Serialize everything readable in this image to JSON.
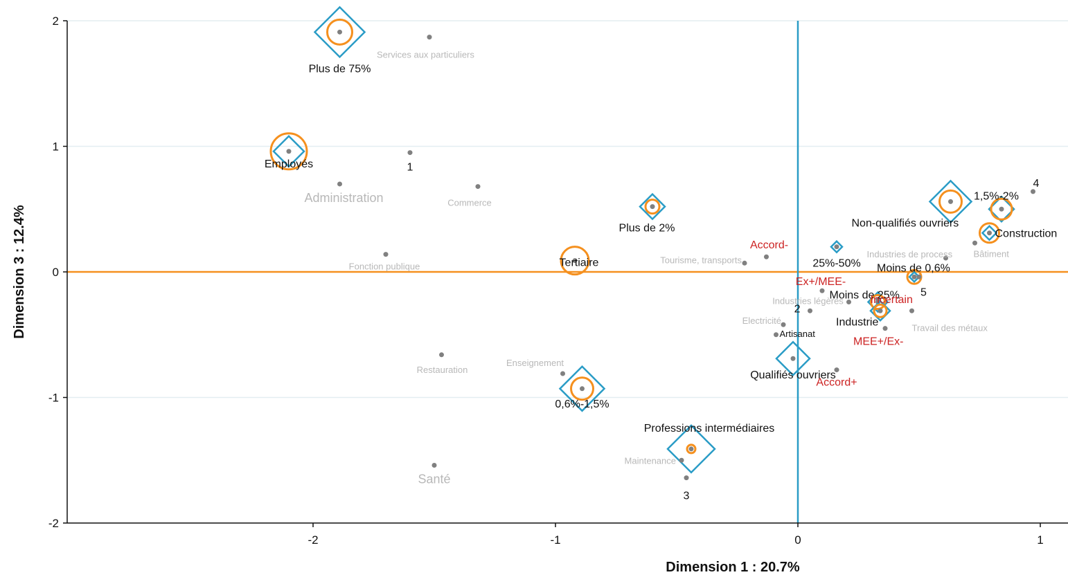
{
  "chart_data": {
    "type": "scatter",
    "xlabel": "Dimension 1 : 20.7%",
    "ylabel": "Dimension 3 : 12.4%",
    "xlim": [
      -2.9,
      1.11
    ],
    "ylim": [
      -2,
      2
    ],
    "xticks": [
      "-2",
      "-1",
      "0",
      "1"
    ],
    "yticks": [
      "2",
      "1",
      "0",
      "-1",
      "-2"
    ],
    "grid": "horizontal",
    "colors": {
      "active": "#111111",
      "supplementary": "#b8b8b8",
      "illustrative": "#cc2222",
      "diamond": "#2a9cc6",
      "circle": "#f5901e",
      "point": "#808080"
    },
    "reference_lines": [
      {
        "orientation": "horizontal",
        "value": 0,
        "color": "#f5901e"
      },
      {
        "orientation": "vertical",
        "value": 0,
        "color": "#2a9cc6"
      }
    ],
    "points": [
      {
        "label": "Plus de 75%",
        "x": -1.89,
        "y": 1.91,
        "group": "active",
        "circle": 18,
        "diamond": 36
      },
      {
        "label": "Services aux particuliers",
        "x": -1.52,
        "y": 1.87,
        "group": "supplementary"
      },
      {
        "label": "Employés",
        "x": -2.1,
        "y": 0.96,
        "group": "active",
        "circle": 26,
        "diamond": 22
      },
      {
        "label": "1",
        "x": -1.6,
        "y": 0.95,
        "group": "active"
      },
      {
        "label": "Administration",
        "x": -1.89,
        "y": 0.7,
        "group": "supplementary"
      },
      {
        "label": "Commerce",
        "x": -1.32,
        "y": 0.68,
        "group": "supplementary"
      },
      {
        "label": "Plus de 2%",
        "x": -0.6,
        "y": 0.52,
        "group": "active",
        "circle": 10,
        "diamond": 18
      },
      {
        "label": "Fonction publique",
        "x": -1.7,
        "y": 0.14,
        "group": "supplementary"
      },
      {
        "label": "Tertiaire",
        "x": -0.92,
        "y": 0.09,
        "group": "active",
        "circle": 20
      },
      {
        "label": "Accord-",
        "x": -0.13,
        "y": 0.12,
        "group": "illustrative"
      },
      {
        "label": "Tourisme, transports",
        "x": -0.22,
        "y": 0.07,
        "group": "supplementary"
      },
      {
        "label": "25%-50%",
        "x": 0.16,
        "y": 0.2,
        "group": "active",
        "diamond": 8
      },
      {
        "label": "Industries de process",
        "x": 0.61,
        "y": 0.11,
        "group": "supplementary"
      },
      {
        "label": "Non-qualifiés ouvriers",
        "x": 0.63,
        "y": 0.56,
        "group": "active",
        "circle": 16,
        "diamond": 30
      },
      {
        "label": "1,5%-2%",
        "x": 0.84,
        "y": 0.5,
        "group": "active",
        "circle": 15,
        "diamond": 18
      },
      {
        "label": "4",
        "x": 0.97,
        "y": 0.64,
        "group": "active"
      },
      {
        "label": "Construction",
        "x": 0.79,
        "y": 0.31,
        "group": "active",
        "circle": 14,
        "diamond": 10
      },
      {
        "label": "Bâtiment",
        "x": 0.73,
        "y": 0.23,
        "group": "supplementary"
      },
      {
        "label": "Moins de 0,6%",
        "x": 0.48,
        "y": -0.04,
        "group": "active",
        "circle": 10,
        "diamond": 7
      },
      {
        "label": "5",
        "x": 0.5,
        "y": -0.04,
        "group": "active"
      },
      {
        "label": "Ex+/MEE-",
        "x": 0.1,
        "y": -0.15,
        "group": "illustrative"
      },
      {
        "label": "Moins de 25%",
        "x": 0.33,
        "y": -0.24,
        "group": "active",
        "circle": 10,
        "diamond": 14
      },
      {
        "label": "Industries légères",
        "x": 0.21,
        "y": -0.24,
        "group": "supplementary"
      },
      {
        "label": "Incertain",
        "x": 0.33,
        "y": -0.22,
        "group": "illustrative"
      },
      {
        "label": "2",
        "x": 0.05,
        "y": -0.31,
        "group": "active"
      },
      {
        "label": "Industrie",
        "x": 0.34,
        "y": -0.31,
        "group": "active",
        "circle": 9,
        "diamond": 14
      },
      {
        "label": "Travail des métaux",
        "x": 0.47,
        "y": -0.31,
        "group": "supplementary"
      },
      {
        "label": "Electricité",
        "x": -0.06,
        "y": -0.42,
        "group": "supplementary"
      },
      {
        "label": "MEE+/Ex-",
        "x": 0.36,
        "y": -0.45,
        "group": "illustrative"
      },
      {
        "label": "Artisanat",
        "x": -0.09,
        "y": -0.5,
        "group": "active"
      },
      {
        "label": "Qualifiés ouvriers",
        "x": -0.02,
        "y": -0.69,
        "group": "active",
        "diamond": 24
      },
      {
        "label": "Accord+",
        "x": 0.16,
        "y": -0.78,
        "group": "illustrative"
      },
      {
        "label": "0,6%-1,5%",
        "x": -0.89,
        "y": -0.93,
        "group": "active",
        "circle": 16,
        "diamond": 32
      },
      {
        "label": "Restauration",
        "x": -1.47,
        "y": -0.66,
        "group": "supplementary"
      },
      {
        "label": "Enseignement",
        "x": -0.97,
        "y": -0.81,
        "group": "supplementary"
      },
      {
        "label": "Professions intermédiaires",
        "x": -0.44,
        "y": -1.41,
        "group": "active",
        "circle": 6,
        "diamond": 34
      },
      {
        "label": "Maintenance",
        "x": -0.48,
        "y": -1.5,
        "group": "supplementary"
      },
      {
        "label": "3",
        "x": -0.46,
        "y": -1.64,
        "group": "active"
      },
      {
        "label": "Santé",
        "x": -1.5,
        "y": -1.54,
        "group": "supplementary"
      }
    ]
  }
}
